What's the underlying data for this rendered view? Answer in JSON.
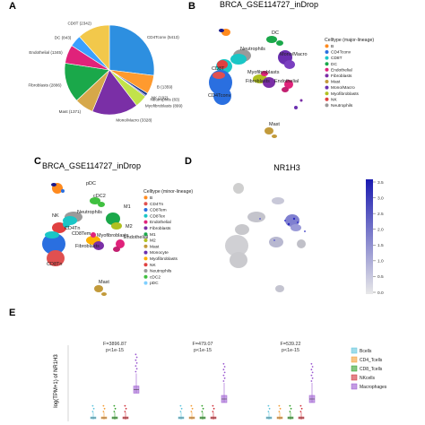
{
  "panels": {
    "A": {
      "letter": "A"
    },
    "B": {
      "letter": "B",
      "title": "BRCA_GSE114727_inDrop"
    },
    "C": {
      "letter": "C",
      "title": "BRCA_GSE114727_inDrop"
    },
    "D": {
      "letter": "D",
      "title": "NR1H3"
    },
    "E": {
      "letter": "E"
    }
  },
  "chart_data": [
    {
      "type": "pie",
      "panel": "A",
      "categories": [
        "CD4Tconv",
        "B",
        "NK",
        "Neutrophils",
        "Myofibroblasts",
        "Mono/Macro",
        "Mast",
        "Fibroblasts",
        "Endothelial",
        "DC",
        "CD8T"
      ],
      "values": [
        5413,
        1359,
        192,
        83,
        899,
        3328,
        1371,
        2886,
        1345,
        843,
        2342
      ],
      "labels": [
        "CD4Tconv (5413)",
        "B (1359)",
        "NK (192)",
        "Neutrophils (83)",
        "Myofibroblasts (899)",
        "Mono/Macro (3328)",
        "Mast (1371)",
        "Fibroblasts (2886)",
        "Endothelial (1345)",
        "DC (843)",
        "CD8T (2342)"
      ],
      "colors": [
        "#2d8fe0",
        "#ff9a2e",
        "#1f3d8f",
        "#3b3fbf",
        "#c2e24a",
        "#7a2fa6",
        "#d6a84a",
        "#1aa84a",
        "#e0227a",
        "#3aa0ff",
        "#f2c84b"
      ]
    },
    {
      "type": "scatter",
      "panel": "B",
      "legend_title": "Celltype (major-lineage)",
      "legend": [
        "B",
        "CD4Tconv",
        "CD8T",
        "DC",
        "Endothelial",
        "Fibroblasts",
        "Mast",
        "Mono/Macro",
        "Myofibroblasts",
        "NK",
        "Neutrophils"
      ],
      "colors": [
        "#ff8a1e",
        "#2a6fe0",
        "#1ac6c6",
        "#1aa84a",
        "#e0227a",
        "#7a2fa6",
        "#c29a3a",
        "#6a2fb0",
        "#b0c020",
        "#e04040",
        "#9a9a9a"
      ],
      "annotations": [
        "DC",
        "Neutrophils",
        "Mono/Macro",
        "CD8T",
        "Myofibroblasts",
        "Fibroblasts",
        "Endothelial",
        "CD4Tconv",
        "Mast"
      ]
    },
    {
      "type": "scatter",
      "panel": "C",
      "legend_title": "Celltype (minor-lineage)",
      "legend": [
        "B",
        "CD4Tn",
        "CD8Tem",
        "CD8Tex",
        "Endothelial",
        "Fibroblasts",
        "M1",
        "M2",
        "Mast",
        "Monocyte",
        "Myofibroblasts",
        "NK",
        "Neutrophils",
        "cDC2",
        "pDC"
      ],
      "colors": [
        "#ff8a1e",
        "#e05050",
        "#2a6fe0",
        "#1ac6c6",
        "#e0227a",
        "#7a2fa6",
        "#1aa84a",
        "#b0c020",
        "#c29a3a",
        "#6a2fb0",
        "#ffb000",
        "#e04040",
        "#9a9a9a",
        "#40c040",
        "#7fd0ff"
      ],
      "annotations": [
        "pDC",
        "cDC2",
        "M1",
        "Neutrophils",
        "NK",
        "CD4Tn",
        "CD8Tem",
        "M2",
        "Myofibroblasts",
        "Endothelial",
        "Fibroblasts",
        "CD8Tn",
        "Mast"
      ]
    },
    {
      "type": "scatter",
      "panel": "D",
      "colorbar_ticks": [
        "3.5",
        "3.0",
        "2.5",
        "2.0",
        "1.5",
        "1.0",
        "0.5",
        "0.0"
      ],
      "ylim": [
        0,
        3.5
      ]
    },
    {
      "type": "box",
      "panel": "E",
      "ylabel": "log(TPM+1) of NR1H3",
      "groups": [
        {
          "stat": "F=3896.87",
          "p": "p<1e-15"
        },
        {
          "stat": "F=479.07",
          "p": "p<1e-15"
        },
        {
          "stat": "F=539.22",
          "p": "p<1e-15"
        }
      ],
      "legend": [
        "Bcells",
        "CD4_Tcells",
        "CD8_Tcells",
        "NKcells",
        "Macrophages"
      ],
      "colors": [
        "#5fc4dc",
        "#f39c34",
        "#33a02c",
        "#d0303a",
        "#9b59d0"
      ],
      "medians": [
        [
          0.0,
          0.0,
          0.0,
          0.0,
          0.45
        ],
        [
          0.0,
          0.0,
          0.0,
          0.0,
          0.3
        ],
        [
          0.0,
          0.0,
          0.0,
          0.0,
          0.3
        ]
      ]
    }
  ]
}
